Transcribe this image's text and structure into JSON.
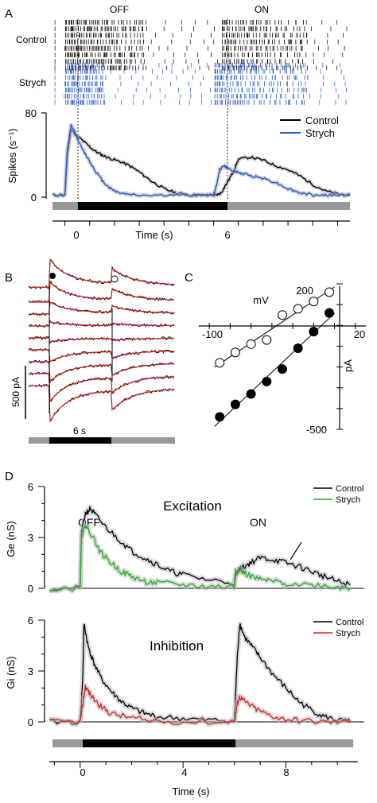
{
  "panels": {
    "A": "A",
    "B": "B",
    "C": "C",
    "D": "D"
  },
  "chart_data": [
    {
      "id": "A-raster",
      "type": "raster",
      "labels": {
        "off": "OFF",
        "on": "ON",
        "control": "Control",
        "strych": "Strych"
      },
      "rows": {
        "control": 8,
        "strych": 7
      },
      "colors": {
        "control": "#000000",
        "strych": "#2255dd"
      }
    },
    {
      "id": "A-psth",
      "type": "line",
      "ylabel": "Spikes (s⁻¹)",
      "xlabel": "Time (s)",
      "ylim": [
        0,
        80
      ],
      "xlim": [
        -0.5,
        11.5
      ],
      "yticks": [
        {
          "v": 0,
          "label": "0"
        },
        {
          "v": 80,
          "label": "80"
        }
      ],
      "xticks": [
        {
          "v": 0,
          "label": "0"
        },
        {
          "v": 6,
          "label": "6"
        }
      ],
      "stim_bar": {
        "off_start": 0,
        "off_end": 6,
        "label_colors": {
          "light": "#999999",
          "dark": "#000000"
        }
      },
      "legend": [
        "Control",
        "Strych"
      ],
      "series": [
        {
          "name": "Control",
          "color": "#000000",
          "x": [
            -0.5,
            0,
            0.1,
            0.25,
            0.4,
            0.6,
            0.9,
            1.2,
            1.5,
            1.8,
            2.2,
            2.6,
            3.0,
            3.5,
            4.0,
            4.5,
            5.0,
            5.5,
            6.0,
            6.1,
            6.3,
            6.5,
            6.8,
            7.0,
            7.5,
            8.0,
            8.5,
            9.0,
            9.5,
            10.0,
            10.5,
            11.0,
            11.5
          ],
          "y": [
            2,
            2,
            40,
            64,
            60,
            56,
            50,
            44,
            40,
            37,
            34,
            30,
            24,
            15,
            8,
            4,
            2,
            2,
            2,
            2,
            4,
            12,
            24,
            36,
            38,
            35,
            30,
            26,
            20,
            12,
            6,
            3,
            2
          ]
        },
        {
          "name": "Strych",
          "color": "#2255dd",
          "x": [
            -0.5,
            0,
            0.1,
            0.25,
            0.4,
            0.6,
            0.9,
            1.2,
            1.5,
            1.8,
            2.1,
            2.5,
            3.0,
            4.0,
            5.0,
            6.0,
            6.1,
            6.25,
            6.4,
            6.6,
            6.9,
            7.2,
            7.6,
            8.0,
            8.5,
            9.0,
            9.5,
            10.0,
            10.5,
            11.0,
            11.5
          ],
          "y": [
            2,
            2,
            45,
            68,
            62,
            50,
            38,
            26,
            16,
            9,
            5,
            3,
            2,
            2,
            2,
            2,
            10,
            26,
            30,
            27,
            24,
            22,
            20,
            18,
            14,
            8,
            4,
            2,
            2,
            2,
            2
          ]
        }
      ]
    },
    {
      "id": "B-currents",
      "type": "line",
      "scalebar": {
        "y_label": "500 pA",
        "x_label": "6 s"
      },
      "markers": {
        "off": "filled-circle",
        "on": "open-circle"
      },
      "trace_offsets": [
        -55,
        -40,
        -28,
        -16,
        -4,
        8,
        20,
        32,
        44
      ],
      "colors": {
        "data": "#000000",
        "fit": "#cc2222"
      }
    },
    {
      "id": "C-iv",
      "type": "scatter",
      "xlabel": "mV",
      "ylabel": "pA",
      "xlim": [
        -130,
        30
      ],
      "ylim": [
        -500,
        200
      ],
      "xticks": [
        {
          "v": -100,
          "label": "-100"
        },
        {
          "v": 20,
          "label": "20"
        }
      ],
      "yticks": [
        {
          "v": 200,
          "label": "200"
        },
        {
          "v": -500,
          "label": "-500"
        }
      ],
      "series": [
        {
          "name": "open",
          "marker": "open-circle",
          "x": [
            -110,
            -95,
            -80,
            -65,
            -50,
            -35,
            -20,
            -5
          ],
          "y": [
            -180,
            -130,
            -90,
            -70,
            50,
            80,
            115,
            160
          ]
        },
        {
          "name": "filled",
          "marker": "filled-circle",
          "x": [
            -110,
            -95,
            -80,
            -65,
            -50,
            -35,
            -20,
            -5
          ],
          "y": [
            -440,
            -380,
            -330,
            -270,
            -210,
            -110,
            -30,
            60
          ]
        }
      ]
    },
    {
      "id": "D-excitation",
      "type": "line",
      "title": "Excitation",
      "ylabel": "Ge (nS)",
      "ylim": [
        0,
        6
      ],
      "xlim": [
        -1.2,
        10.8
      ],
      "yticks": [
        {
          "v": 0,
          "label": "0"
        },
        {
          "v": 3,
          "label": "3"
        },
        {
          "v": 6,
          "label": "6"
        }
      ],
      "annotations": {
        "off": "OFF",
        "on": "ON"
      },
      "legend": [
        "Control",
        "Strych"
      ],
      "series": [
        {
          "name": "Control",
          "color": "#000000",
          "x": [
            -1.2,
            0,
            0.05,
            0.2,
            0.4,
            0.6,
            1.0,
            1.5,
            2.0,
            2.5,
            3.0,
            3.5,
            4.0,
            5.0,
            6.0,
            6.05,
            6.3,
            6.6,
            7.0,
            7.5,
            8.0,
            8.5,
            9.0,
            9.5,
            10.0,
            10.5
          ],
          "y": [
            0,
            0,
            3.3,
            4.4,
            4.7,
            4.3,
            3.6,
            2.9,
            2.2,
            1.8,
            1.4,
            1.0,
            0.8,
            0.5,
            0.35,
            1.0,
            1.2,
            1.5,
            1.8,
            1.7,
            1.5,
            1.3,
            1.0,
            0.7,
            0.4,
            0.2
          ]
        },
        {
          "name": "Strych",
          "color": "#22aa22",
          "x": [
            -1.2,
            0,
            0.05,
            0.2,
            0.4,
            0.8,
            1.2,
            1.6,
            2.0,
            2.5,
            3.0,
            4.0,
            5.0,
            6.0,
            6.05,
            6.2,
            6.5,
            7.0,
            7.5,
            8.0,
            9.0,
            10.0,
            10.5
          ],
          "y": [
            0,
            0,
            3.1,
            3.7,
            3.3,
            2.1,
            1.5,
            1.0,
            0.7,
            0.4,
            0.3,
            0.2,
            0.1,
            0.1,
            0.9,
            1.1,
            0.8,
            0.5,
            0.4,
            0.3,
            0.2,
            0.1,
            0.0
          ]
        }
      ]
    },
    {
      "id": "D-inhibition",
      "type": "line",
      "title": "Inhibition",
      "ylabel": "Gi (nS)",
      "xlabel": "Time (s)",
      "ylim": [
        0,
        6
      ],
      "xlim": [
        -1.2,
        10.8
      ],
      "yticks": [
        {
          "v": 0,
          "label": "0"
        },
        {
          "v": 3,
          "label": "3"
        },
        {
          "v": 6,
          "label": "6"
        }
      ],
      "xticks": [
        {
          "v": 0,
          "label": "0"
        },
        {
          "v": 4,
          "label": "4"
        },
        {
          "v": 8,
          "label": "8"
        }
      ],
      "legend": [
        "Control",
        "Strych"
      ],
      "stim_bar": {
        "off_start": 0,
        "off_end": 6
      },
      "series": [
        {
          "name": "Control",
          "color": "#000000",
          "x": [
            -1.2,
            0,
            0.1,
            0.15,
            0.3,
            0.5,
            0.8,
            1.2,
            1.6,
            2.0,
            2.5,
            3.0,
            4.0,
            5.0,
            6.0,
            6.1,
            6.2,
            6.4,
            6.7,
            7.0,
            7.5,
            8.0,
            8.5,
            9.0,
            9.5,
            10.0,
            10.5
          ],
          "y": [
            0,
            0,
            2.5,
            5.8,
            4.5,
            3.6,
            2.6,
            1.8,
            1.2,
            0.8,
            0.5,
            0.3,
            0.2,
            0.1,
            0.1,
            3.5,
            5.8,
            5.0,
            4.4,
            3.8,
            2.8,
            2.0,
            1.2,
            0.7,
            0.3,
            0.1,
            0.0
          ]
        },
        {
          "name": "Strych",
          "color": "#dd2222",
          "x": [
            -1.2,
            0,
            0.1,
            0.2,
            0.4,
            0.8,
            1.2,
            1.8,
            2.5,
            4.0,
            6.0,
            6.1,
            6.2,
            6.4,
            6.8,
            7.2,
            7.8,
            8.5,
            9.5,
            10.5
          ],
          "y": [
            0,
            0,
            1.0,
            2.1,
            1.6,
            0.9,
            0.5,
            0.3,
            0.1,
            0.0,
            0.0,
            1.0,
            1.5,
            1.2,
            0.8,
            0.5,
            0.2,
            0.1,
            0.0,
            0.0
          ]
        }
      ]
    }
  ]
}
